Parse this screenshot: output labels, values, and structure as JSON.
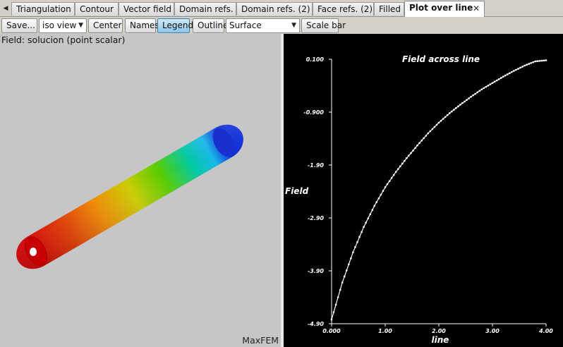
{
  "tabs": [
    {
      "label": "Triangulation"
    },
    {
      "label": "Contour"
    },
    {
      "label": "Vector field"
    },
    {
      "label": "Domain refs."
    },
    {
      "label": "Domain refs. (2)"
    },
    {
      "label": "Face refs. (2)"
    },
    {
      "label": "Filled"
    },
    {
      "label": "Plot over line",
      "active": true
    }
  ],
  "toolbar": {
    "save_label": "Save...",
    "view_selected": "iso view",
    "center_label": "Center",
    "names_label": "Names",
    "legend_label": "Legend",
    "legend_checked": true,
    "outline_label": "Outline",
    "representation_selected": "Surface",
    "scale_bar_label": "Scale bar"
  },
  "viewport": {
    "field_label": "Field: solucion (point scalar)",
    "brand": "MaxFEM",
    "background": "#c6c6c6"
  },
  "chart_data": {
    "type": "line",
    "title": "Field across line",
    "xlabel": "line",
    "ylabel": "Field",
    "xlim": [
      0.0,
      4.0
    ],
    "ylim": [
      -4.9,
      0.1
    ],
    "xticks": [
      "0.000",
      "1.00",
      "2.00",
      "3.00",
      "4.00"
    ],
    "yticks": [
      "0.100",
      "-0.900",
      "-1.90",
      "-2.90",
      "-3.90",
      "-4.90"
    ],
    "grid": false,
    "background": "#000000",
    "series_color": "#ffffff",
    "x": [
      0.0,
      0.2,
      0.4,
      0.6,
      0.8,
      1.0,
      1.2,
      1.4,
      1.6,
      1.8,
      2.0,
      2.2,
      2.4,
      2.6,
      2.8,
      3.0,
      3.2,
      3.4,
      3.6,
      3.8,
      4.0
    ],
    "series": [
      {
        "values": [
          -4.82,
          -4.12,
          -3.55,
          -3.07,
          -2.67,
          -2.32,
          -2.03,
          -1.77,
          -1.53,
          -1.3,
          -1.1,
          -0.92,
          -0.76,
          -0.61,
          -0.47,
          -0.35,
          -0.23,
          -0.12,
          -0.02,
          0.06,
          0.08
        ]
      }
    ]
  }
}
